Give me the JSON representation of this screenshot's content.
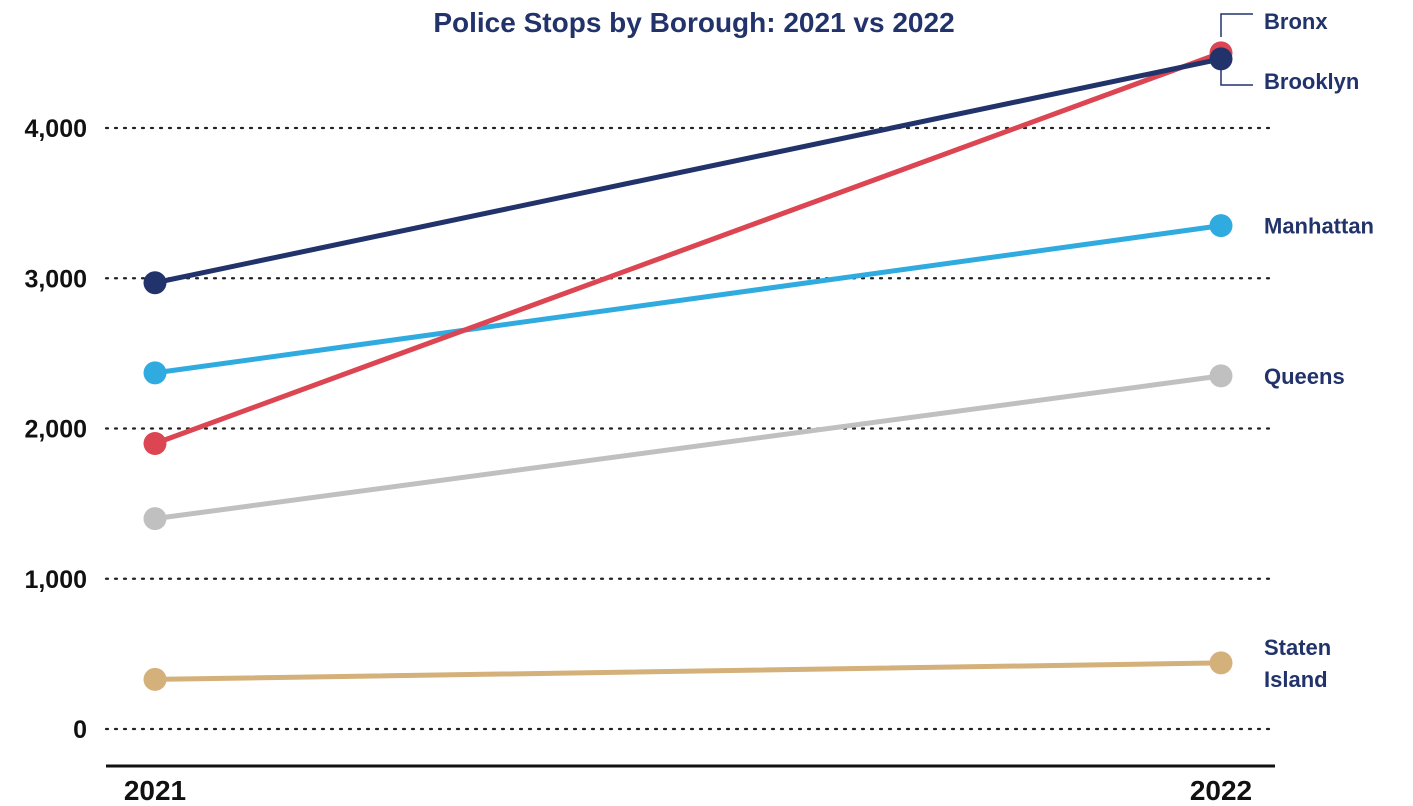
{
  "chart_data": {
    "type": "line",
    "title": "Police Stops by Borough: 2021 vs 2022",
    "xlabel": "",
    "ylabel": "",
    "categories": [
      "2021",
      "2022"
    ],
    "ylim": [
      0,
      4500
    ],
    "yticks": [
      0,
      1000,
      2000,
      3000,
      4000
    ],
    "ytick_labels": [
      "0",
      "1,000",
      "2,000",
      "3,000",
      "4,000"
    ],
    "grid": true,
    "legend": "direct labels at right end of lines",
    "series": [
      {
        "name": "Staten Island",
        "label_lines": [
          "Staten",
          "Island"
        ],
        "color": "#d4b07a",
        "values": [
          330,
          440
        ]
      },
      {
        "name": "Queens",
        "label_lines": [
          "Queens"
        ],
        "color": "#c0c0c0",
        "values": [
          1400,
          2350
        ]
      },
      {
        "name": "Manhattan",
        "label_lines": [
          "Manhattan"
        ],
        "color": "#30abe0",
        "values": [
          2370,
          3350
        ]
      },
      {
        "name": "Bronx",
        "label_lines": [
          "Bronx"
        ],
        "color": "#db4652",
        "values": [
          1900,
          4500
        ]
      },
      {
        "name": "Brooklyn",
        "label_lines": [
          "Brooklyn"
        ],
        "color": "#22336b",
        "values": [
          2970,
          4460
        ]
      }
    ]
  }
}
